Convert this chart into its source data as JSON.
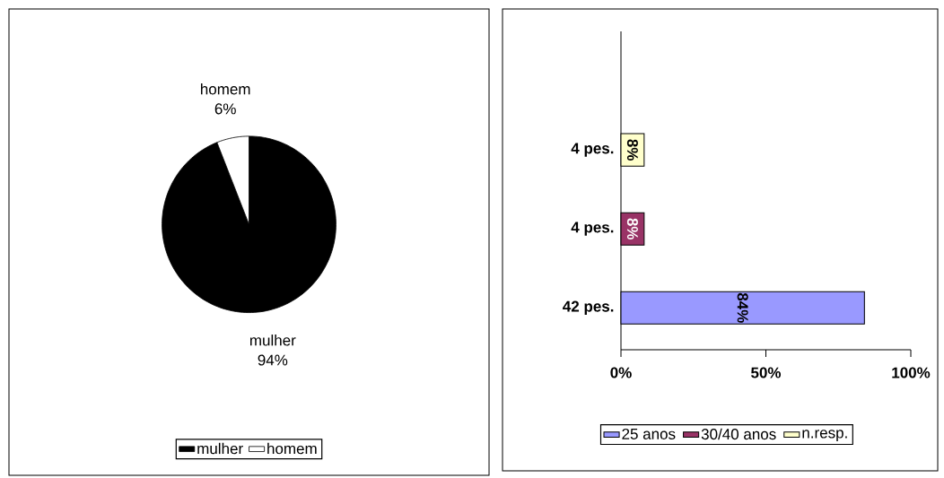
{
  "chart_data": [
    {
      "type": "pie",
      "categories": [
        "mulher",
        "homem"
      ],
      "values": [
        94,
        6
      ],
      "colors": [
        "#000000",
        "#ffffff"
      ],
      "value_labels": [
        "94%",
        "6%"
      ],
      "legend": "bottom"
    },
    {
      "type": "bar",
      "orientation": "horizontal",
      "categories": [
        "4 pes.",
        "4 pes.",
        "42 pes."
      ],
      "series": [
        {
          "name": "25 anos",
          "color": "#9999ff",
          "values": [
            null,
            null,
            84
          ],
          "value_labels": [
            null,
            null,
            "84%"
          ]
        },
        {
          "name": "30/40 anos",
          "color": "#993366",
          "values": [
            null,
            8,
            null
          ],
          "value_labels": [
            null,
            "8%",
            null
          ]
        },
        {
          "name": "n.resp.",
          "color": "#ffffcc",
          "values": [
            8,
            null,
            null
          ],
          "value_labels": [
            "8%",
            null,
            null
          ]
        }
      ],
      "xlim": [
        0,
        100
      ],
      "xticks": [
        {
          "value": 0,
          "label": "0%"
        },
        {
          "value": 50,
          "label": "50%"
        },
        {
          "value": 100,
          "label": "100%"
        }
      ],
      "legend": "bottom"
    }
  ]
}
